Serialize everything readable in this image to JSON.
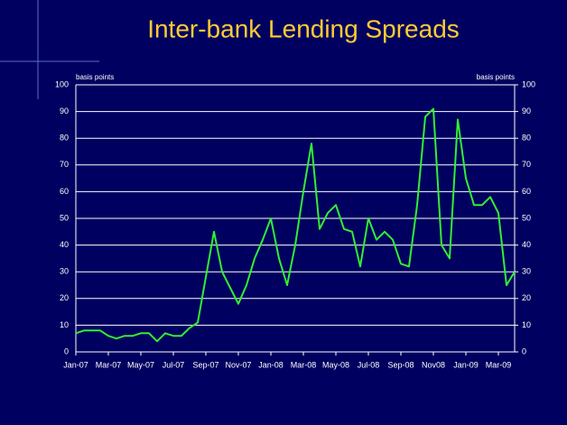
{
  "chart_data": {
    "type": "line",
    "title": "Inter-bank Lending Spreads",
    "y_label": "basis points",
    "y2_label": "basis points",
    "categories": [
      "Jan-07",
      null,
      null,
      null,
      "Mar-07",
      null,
      null,
      null,
      "May-07",
      null,
      null,
      null,
      "Jul-07",
      null,
      null,
      null,
      "Sep-07",
      null,
      null,
      null,
      "Nov-07",
      null,
      null,
      null,
      "Jan-08",
      null,
      null,
      null,
      "Mar-08",
      null,
      null,
      null,
      "May-08",
      null,
      null,
      null,
      "Jul-08",
      null,
      null,
      null,
      "Sep-08",
      null,
      null,
      null,
      "Nov08",
      null,
      null,
      null,
      "Jan-09",
      null,
      null,
      null,
      "Mar-09",
      null,
      null
    ],
    "series": [
      {
        "name": "Spread",
        "color": "#33ee33",
        "values": [
          7,
          8,
          8,
          8,
          6,
          5,
          6,
          6,
          7,
          7,
          4,
          7,
          6,
          6,
          9,
          11,
          28,
          45,
          30,
          24,
          18,
          25,
          35,
          42,
          50,
          35,
          25,
          40,
          60,
          78,
          46,
          52,
          55,
          46,
          45,
          32,
          50,
          42,
          45,
          42,
          33,
          32,
          55,
          88,
          91,
          40,
          35,
          87,
          65,
          55,
          55,
          58,
          52,
          25,
          30
        ]
      }
    ],
    "ylim": [
      0,
      100
    ],
    "yticks": [
      0,
      10,
      20,
      30,
      40,
      50,
      60,
      70,
      80,
      90,
      100
    ],
    "y2lim": [
      0,
      100
    ],
    "y2ticks": [
      0,
      10,
      20,
      30,
      40,
      50,
      60,
      70,
      80,
      90,
      100
    ],
    "grid": true
  }
}
